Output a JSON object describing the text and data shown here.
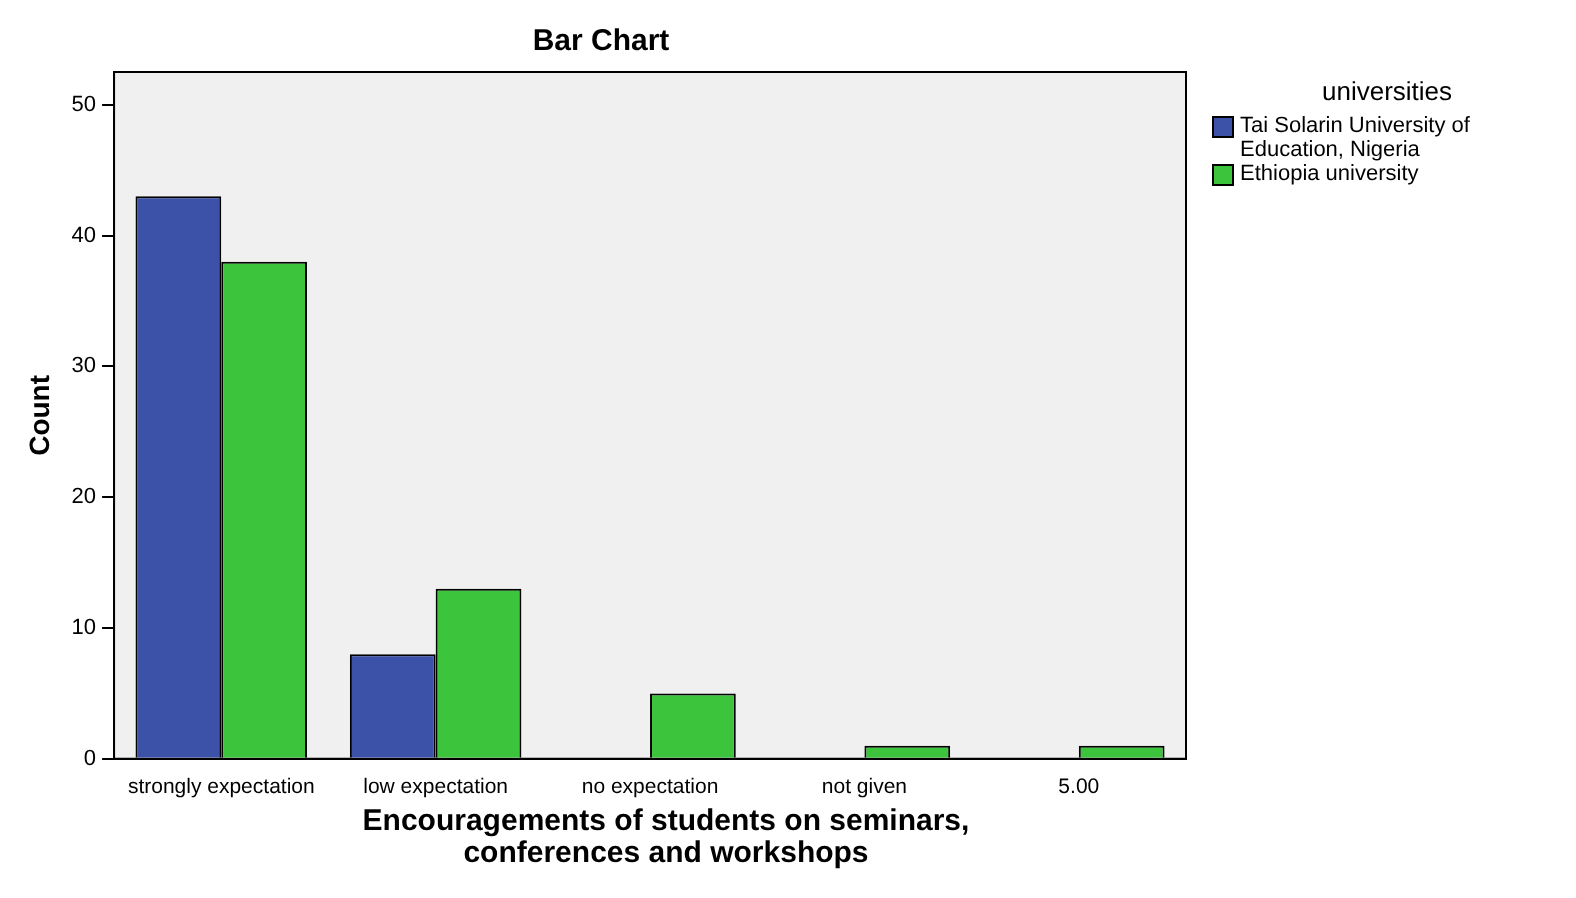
{
  "chart_data": {
    "type": "bar",
    "title": "Bar Chart",
    "xlabel": "Encouragements of students on seminars, conferences and workshops",
    "ylabel": "Count",
    "legend_title": "universities",
    "categories": [
      "strongly expectation",
      "low expectation",
      "no expectation",
      "not given",
      "5.00"
    ],
    "series": [
      {
        "name": "Tai Solarin University of Education, Nigeria",
        "color": "#3c52a8",
        "values": [
          43,
          8,
          0,
          0,
          0
        ]
      },
      {
        "name": "Ethiopia university",
        "color": "#3cc43c",
        "values": [
          38,
          13,
          5,
          1,
          1
        ]
      }
    ],
    "ylim": [
      0,
      52.5
    ],
    "yticks": [
      0,
      10,
      20,
      30,
      40,
      50
    ],
    "grid": false,
    "legend": "top right"
  }
}
